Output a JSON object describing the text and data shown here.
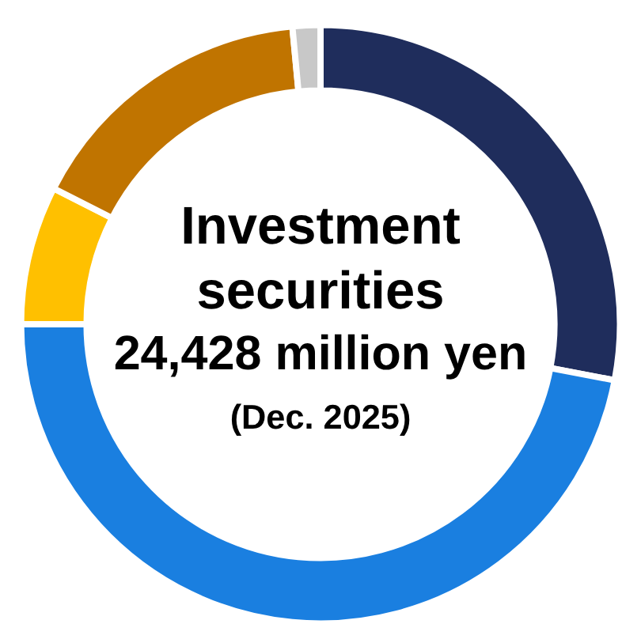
{
  "chart_data": {
    "type": "donut",
    "title": "Investment securities",
    "subtitle": "24,428 million yen",
    "annotations": [
      "(Dec. 2025)"
    ],
    "categories": [
      null,
      null,
      null,
      null,
      null
    ],
    "values": [
      28,
      47,
      7.5,
      16,
      1.5
    ],
    "colors": [
      "#1f2d5c",
      "#1a7fe0",
      "#ffc000",
      "#c07400",
      "#c8c8c8"
    ],
    "legend": false
  }
}
